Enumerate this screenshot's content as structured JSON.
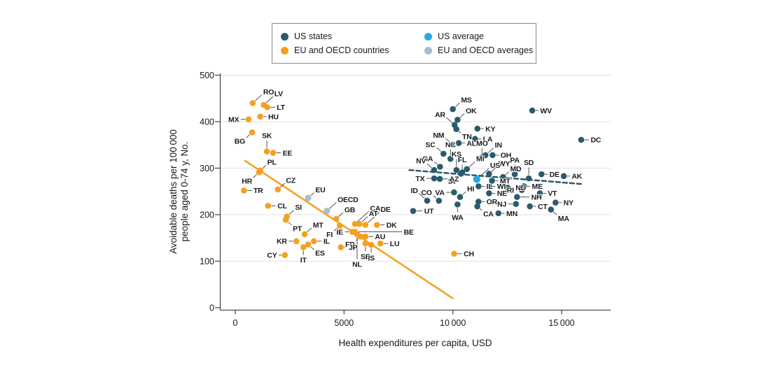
{
  "legend": {
    "items": [
      {
        "label": "US states",
        "color": "#2A5A6D"
      },
      {
        "label": "US average",
        "color": "#29A9E1"
      },
      {
        "label": "EU and OECD countries",
        "color": "#F5A01E"
      },
      {
        "label": "EU and OECD averages",
        "color": "#A4C0CE"
      }
    ]
  },
  "colors": {
    "us_states": "#2A5A6D",
    "eu_oecd_countries": "#F5A01E",
    "us_average": "#29A9E1",
    "eu_oecd_averages": "#A4C0CE",
    "grid": "#E2E2E2",
    "axis": "#4D4D4D",
    "leader": "#3F3F3F",
    "text": "#1A1A1A"
  },
  "chart_data": {
    "type": "scatter",
    "xlabel": "Health expenditures per capita, USD",
    "ylabel_lines": [
      "Avoidable deaths per 100 000",
      "people aged 0-74 y, No."
    ],
    "xlim": [
      0,
      17200
    ],
    "ylim": [
      0,
      500
    ],
    "x_ticks": [
      0,
      5000,
      10000,
      15000
    ],
    "x_tick_labels": [
      "0",
      "5000",
      "10 000",
      "15 000"
    ],
    "y_ticks": [
      0,
      100,
      200,
      300,
      400,
      500
    ],
    "y_tick_labels": [
      "0",
      "100",
      "200",
      "300",
      "400",
      "500"
    ],
    "grid": "horizontal",
    "legend_position": "top-center",
    "series": [
      {
        "name": "US states",
        "color": "#2A5A6D",
        "points": [
          {
            "l": "MS",
            "x": 10000,
            "y": 427,
            "lp": "tr",
            "f": 2
          },
          {
            "l": "WV",
            "x": 13650,
            "y": 424,
            "lp": "r"
          },
          {
            "l": "OK",
            "x": 10215,
            "y": 404,
            "lp": "tr",
            "f": 2
          },
          {
            "l": "AR",
            "x": 10080,
            "y": 393,
            "lp": "tl",
            "f": 2.5
          },
          {
            "l": "TN",
            "x": 10160,
            "y": 384,
            "lp": "br",
            "f": 1
          },
          {
            "l": "KY",
            "x": 11130,
            "y": 385,
            "lp": "r"
          },
          {
            "l": "DC",
            "x": 15900,
            "y": 361,
            "lp": "r",
            "f": 1.5
          },
          {
            "l": "NM",
            "x": 9980,
            "y": 351,
            "lp": "tl",
            "f": 2
          },
          {
            "l": "AL",
            "x": 10270,
            "y": 354,
            "lp": "r"
          },
          {
            "l": "LA",
            "x": 11020,
            "y": 363,
            "lp": "r"
          },
          {
            "l": "MO",
            "x": 11340,
            "y": 323,
            "lp": "t",
            "f": 2
          },
          {
            "l": "IN",
            "x": 11500,
            "y": 328,
            "lp": "tr",
            "f": 2.5
          },
          {
            "l": "OH",
            "x": 11825,
            "y": 328,
            "lp": "r"
          },
          {
            "l": "SC",
            "x": 9570,
            "y": 331,
            "lp": "tl",
            "f": 2
          },
          {
            "l": "NC",
            "x": 9890,
            "y": 320,
            "lp": "t",
            "f": 2
          },
          {
            "l": "GA",
            "x": 9410,
            "y": 303,
            "lp": "tl",
            "f": 1.5
          },
          {
            "l": "NV",
            "x": 9140,
            "y": 296,
            "lp": "tl",
            "f": 2
          },
          {
            "l": "KS",
            "x": 10165,
            "y": 296,
            "lp": "t",
            "f": 2.5
          },
          {
            "l": "MI",
            "x": 10645,
            "y": 298,
            "lp": "tr",
            "f": 2.5
          },
          {
            "l": "FL",
            "x": 10430,
            "y": 291,
            "lp": "t",
            "f": 1.5
          },
          {
            "l": "IA",
            "x": 10380,
            "y": 288,
            "lp": "bl",
            "f": 1
          },
          {
            "l": "TX",
            "x": 9140,
            "y": 278,
            "lp": "l",
            "f": 1.5
          },
          {
            "l": "AZ",
            "x": 9400,
            "y": 277,
            "lp": "r",
            "f": 1.5
          },
          {
            "l": "WY",
            "x": 11665,
            "y": 288,
            "lp": "tr",
            "f": 2.5
          },
          {
            "l": "PA",
            "x": 12845,
            "y": 287,
            "lp": "t",
            "f": 2
          },
          {
            "l": "SD",
            "x": 13490,
            "y": 278,
            "lp": "t",
            "f": 2.5
          },
          {
            "l": "MD",
            "x": 12310,
            "y": 281,
            "lp": "tr",
            "f": 1.5
          },
          {
            "l": "MT",
            "x": 11800,
            "y": 273,
            "lp": "r"
          },
          {
            "l": "DE",
            "x": 14075,
            "y": 287,
            "lp": "r"
          },
          {
            "l": "AK",
            "x": 15100,
            "y": 283,
            "lp": "r"
          },
          {
            "l": "IL",
            "x": 11180,
            "y": 261,
            "lp": "r"
          },
          {
            "l": "WI",
            "x": 11665,
            "y": 261,
            "lp": "r"
          },
          {
            "l": "ND",
            "x": 12520,
            "y": 258,
            "lp": "r"
          },
          {
            "l": "RI",
            "x": 13170,
            "y": 253,
            "lp": "l"
          },
          {
            "l": "ME",
            "x": 13270,
            "y": 261,
            "lp": "r"
          },
          {
            "l": "VT",
            "x": 14000,
            "y": 246,
            "lp": "r"
          },
          {
            "l": "NH",
            "x": 12950,
            "y": 238,
            "lp": "r",
            "f": 3
          },
          {
            "l": "NE",
            "x": 11665,
            "y": 246,
            "lp": "r"
          },
          {
            "l": "VA",
            "x": 10055,
            "y": 248,
            "lp": "l",
            "f": 1.5
          },
          {
            "l": "HI",
            "x": 10330,
            "y": 238,
            "lp": "tr",
            "f": 1.5
          },
          {
            "l": "OR",
            "x": 11180,
            "y": 228,
            "lp": "r"
          },
          {
            "l": "NJ",
            "x": 12900,
            "y": 223,
            "lp": "l",
            "f": 1.5
          },
          {
            "l": "CT",
            "x": 13540,
            "y": 218,
            "lp": "r"
          },
          {
            "l": "NY",
            "x": 14720,
            "y": 226,
            "lp": "r"
          },
          {
            "l": "MA",
            "x": 14510,
            "y": 211,
            "lp": "br",
            "f": 1.5
          },
          {
            "l": "MN",
            "x": 12095,
            "y": 203,
            "lp": "r"
          },
          {
            "l": "CA",
            "x": 11125,
            "y": 218,
            "lp": "br",
            "f": 1
          },
          {
            "l": "WA",
            "x": 10215,
            "y": 222,
            "lp": "b",
            "f": 1.5
          },
          {
            "l": "UT",
            "x": 8175,
            "y": 208,
            "lp": "r",
            "f": 2
          },
          {
            "l": "ID",
            "x": 8820,
            "y": 230,
            "lp": "tl",
            "f": 2.5
          },
          {
            "l": "CO",
            "x": 9360,
            "y": 230,
            "lp": "tl",
            "f": 1.5
          }
        ]
      },
      {
        "name": "EU and OECD countries",
        "color": "#F5A01E",
        "points": [
          {
            "l": "RO",
            "x": 800,
            "y": 440,
            "lp": "tr",
            "f": 3
          },
          {
            "l": "LV",
            "x": 1310,
            "y": 436,
            "lp": "tr",
            "f": 3
          },
          {
            "l": "LT",
            "x": 1470,
            "y": 431,
            "lp": "r",
            "f": 1.5
          },
          {
            "l": "HU",
            "x": 1150,
            "y": 411,
            "lp": "r"
          },
          {
            "l": "MX",
            "x": 610,
            "y": 405,
            "lp": "l",
            "f": 1.5
          },
          {
            "l": "BG",
            "x": 775,
            "y": 377,
            "lp": "bl",
            "f": 1.5
          },
          {
            "l": "SK",
            "x": 1450,
            "y": 336,
            "lp": "t",
            "f": 2.5
          },
          {
            "l": "EE",
            "x": 1740,
            "y": 333,
            "lp": "r",
            "f": 1.5
          },
          {
            "l": "PL",
            "x": 1150,
            "y": 295,
            "lp": "tr",
            "f": 1.5
          },
          {
            "l": "HR",
            "x": 1095,
            "y": 291,
            "lp": "bl",
            "f": 1.5
          },
          {
            "l": "TR",
            "x": 400,
            "y": 252,
            "lp": "r",
            "f": 1.5
          },
          {
            "l": "CZ",
            "x": 1955,
            "y": 254,
            "lp": "tr",
            "f": 2
          },
          {
            "l": "CL",
            "x": 1505,
            "y": 219,
            "lp": "r",
            "f": 1.5
          },
          {
            "l": "SI",
            "x": 2370,
            "y": 196,
            "lp": "tr",
            "f": 2
          },
          {
            "l": "PT",
            "x": 2320,
            "y": 189,
            "lp": "br",
            "f": 1.5
          },
          {
            "l": "GB",
            "x": 4640,
            "y": 191,
            "lp": "tr",
            "f": 2
          },
          {
            "l": "FI",
            "x": 4800,
            "y": 176,
            "lp": "bl",
            "f": 1.5
          },
          {
            "l": "MT",
            "x": 3190,
            "y": 158,
            "lp": "tr",
            "f": 2
          },
          {
            "l": "CA",
            "x": 5500,
            "y": 180,
            "lp": "tr",
            "f": 5
          },
          {
            "l": "AT",
            "x": 5710,
            "y": 180,
            "lp": "tr",
            "f": 2.5
          },
          {
            "l": "DE",
            "x": 5980,
            "y": 178,
            "lp": "tr",
            "f": 5
          },
          {
            "l": "DK",
            "x": 6510,
            "y": 178,
            "lp": "r",
            "f": 1.5
          },
          {
            "l": "IE",
            "x": 5390,
            "y": 163,
            "lp": "l",
            "f": 1.5
          },
          {
            "l": "BE",
            "x": 5500,
            "y": 163,
            "lp": "r",
            "f": 14
          },
          {
            "l": "FR",
            "x": 5760,
            "y": 153,
            "lp": "bl",
            "f": 1
          },
          {
            "l": "AU",
            "x": 5980,
            "y": 153,
            "lp": "r",
            "f": 1.5
          },
          {
            "l": "NL",
            "x": 5600,
            "y": 158,
            "lp": "b",
            "f": 7
          },
          {
            "l": "JP",
            "x": 4850,
            "y": 130,
            "lp": "r"
          },
          {
            "l": "SE",
            "x": 5980,
            "y": 138,
            "lp": "b",
            "f": 1.5
          },
          {
            "l": "IS",
            "x": 6250,
            "y": 135,
            "lp": "b",
            "f": 1.5
          },
          {
            "l": "LU",
            "x": 6670,
            "y": 138,
            "lp": "r",
            "f": 1.5
          },
          {
            "l": "KR",
            "x": 2810,
            "y": 143,
            "lp": "l",
            "f": 1.5
          },
          {
            "l": "IT",
            "x": 3130,
            "y": 130,
            "lp": "b",
            "f": 1.5
          },
          {
            "l": "ES",
            "x": 3350,
            "y": 136,
            "lp": "br",
            "f": 1.5
          },
          {
            "l": "IL",
            "x": 3615,
            "y": 143,
            "lp": "r",
            "f": 1.5
          },
          {
            "l": "CY",
            "x": 2280,
            "y": 113,
            "lp": "l"
          },
          {
            "l": "CH",
            "x": 10060,
            "y": 116,
            "lp": "r",
            "f": 1.5
          }
        ]
      },
      {
        "name": "US average",
        "color": "#29A9E1",
        "points": [
          {
            "l": "US",
            "x": 11100,
            "y": 276,
            "lp": "tr",
            "f": 4
          }
        ]
      },
      {
        "name": "EU and OECD averages",
        "color": "#A4C0CE",
        "points": [
          {
            "l": "EU",
            "x": 3350,
            "y": 236,
            "lp": "tr",
            "f": 1.5
          },
          {
            "l": "OECD",
            "x": 4210,
            "y": 208,
            "lp": "tr",
            "f": 3
          }
        ]
      }
    ],
    "trend_lines": [
      {
        "name": "eu-oecd-trendline",
        "color": "#F5A01E",
        "style": "solid",
        "x1": 450,
        "y1": 316,
        "x2": 10000,
        "y2": 20
      },
      {
        "name": "us-states-trendline",
        "color": "#2A5A6D",
        "style": "dashed",
        "x1": 8000,
        "y1": 296,
        "x2": 15900,
        "y2": 266
      }
    ]
  }
}
